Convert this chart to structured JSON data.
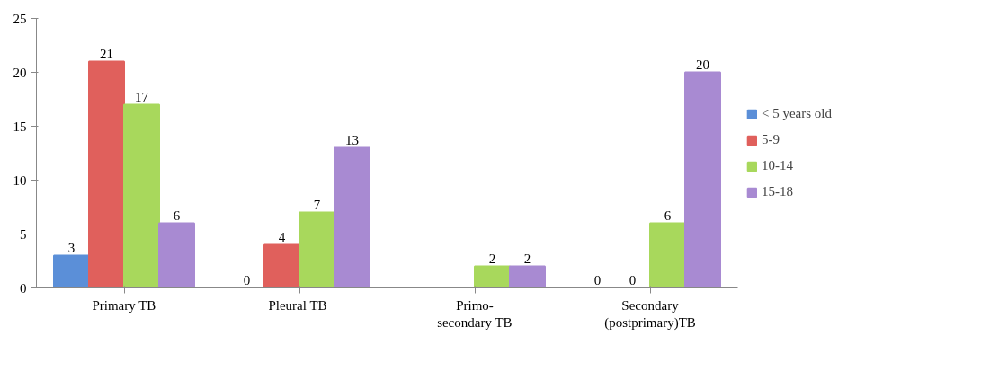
{
  "chart_data": {
    "type": "bar",
    "categories": [
      "Primary TB",
      "Pleural  TB",
      "Primo-\nsecondary TB",
      "Secondary\n(postprimary)TB"
    ],
    "series": [
      {
        "name": "< 5 years old",
        "color": "#5b8fd8",
        "values": [
          3,
          0,
          0,
          0
        ],
        "value_labels": [
          "3",
          "0",
          null,
          "0"
        ]
      },
      {
        "name": "5-9",
        "color": "#e0605c",
        "values": [
          21,
          4,
          0,
          0
        ],
        "value_labels": [
          "21",
          "4",
          null,
          "0"
        ]
      },
      {
        "name": "10-14",
        "color": "#a8d85c",
        "values": [
          17,
          7,
          2,
          6
        ],
        "value_labels": [
          "17",
          "7",
          "2",
          "6"
        ]
      },
      {
        "name": "15-18",
        "color": "#a88ad2",
        "values": [
          6,
          13,
          2,
          20
        ],
        "value_labels": [
          "6",
          "13",
          "2",
          "20"
        ]
      }
    ],
    "ylim": [
      0,
      25
    ],
    "yticks": [
      0,
      5,
      10,
      15,
      20,
      25
    ],
    "grid": false,
    "legend": "right"
  }
}
